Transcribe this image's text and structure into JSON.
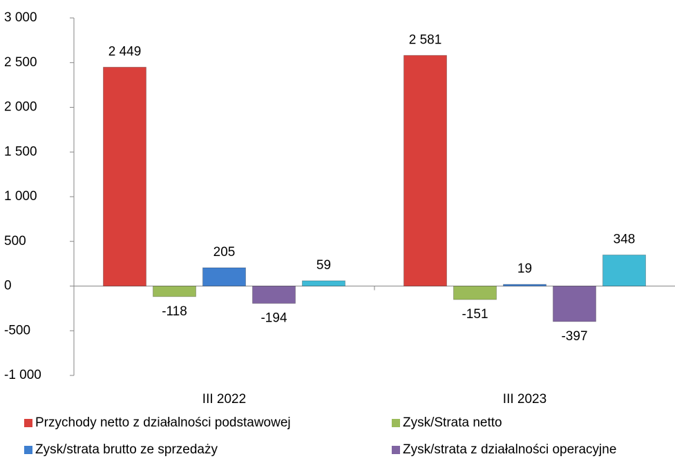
{
  "chart_data": {
    "type": "bar",
    "categories": [
      "III 2022",
      "III 2023"
    ],
    "series": [
      {
        "name": "Przychody netto z działalności podstawowej",
        "color": "#d9403b",
        "values": [
          2449,
          2581
        ],
        "value_labels": [
          "2 449",
          "2 581"
        ]
      },
      {
        "name": "Zysk/Strata netto",
        "color": "#9bbb59",
        "values": [
          -118,
          -151
        ]
      },
      {
        "name": "Zysk/strata brutto ze sprzedaży",
        "color": "#3f7fcf",
        "values": [
          205,
          19
        ]
      },
      {
        "name": "Zysk/strata z działalności operacyjne",
        "color": "#8064a2",
        "values": [
          -194,
          -397
        ]
      },
      {
        "color": "#3fbad6",
        "values": [
          59,
          348
        ]
      }
    ],
    "ylim": [
      -1000,
      3000
    ],
    "yticks": [
      {
        "value": -1000,
        "label": "-1 000"
      },
      -500,
      0,
      500,
      {
        "value": 1000,
        "label": "1 000"
      },
      {
        "value": 1500,
        "label": "1 500"
      },
      {
        "value": 2000,
        "label": "2 000"
      },
      {
        "value": 2500,
        "label": "2 500"
      },
      {
        "value": 3000,
        "label": "3 000"
      }
    ]
  }
}
